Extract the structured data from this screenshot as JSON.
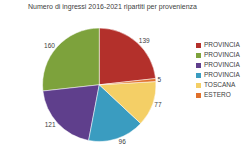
{
  "chart_data": {
    "type": "pie",
    "title": "Numero di ingressi 2016-2021 ripartiti per provenienza",
    "categories": [
      "PROVINCIA",
      "PROVINCIA",
      "PROVINCIA",
      "PROVINCIA",
      "TOSCANA",
      "ESTERO"
    ],
    "values": [
      139,
      160,
      121,
      96,
      77,
      5
    ],
    "colors": [
      "#b3302b",
      "#7da23c",
      "#5f3f8c",
      "#3a9cc0",
      "#f4cf66",
      "#e0702a"
    ],
    "data_labels": true,
    "legend": "right"
  }
}
